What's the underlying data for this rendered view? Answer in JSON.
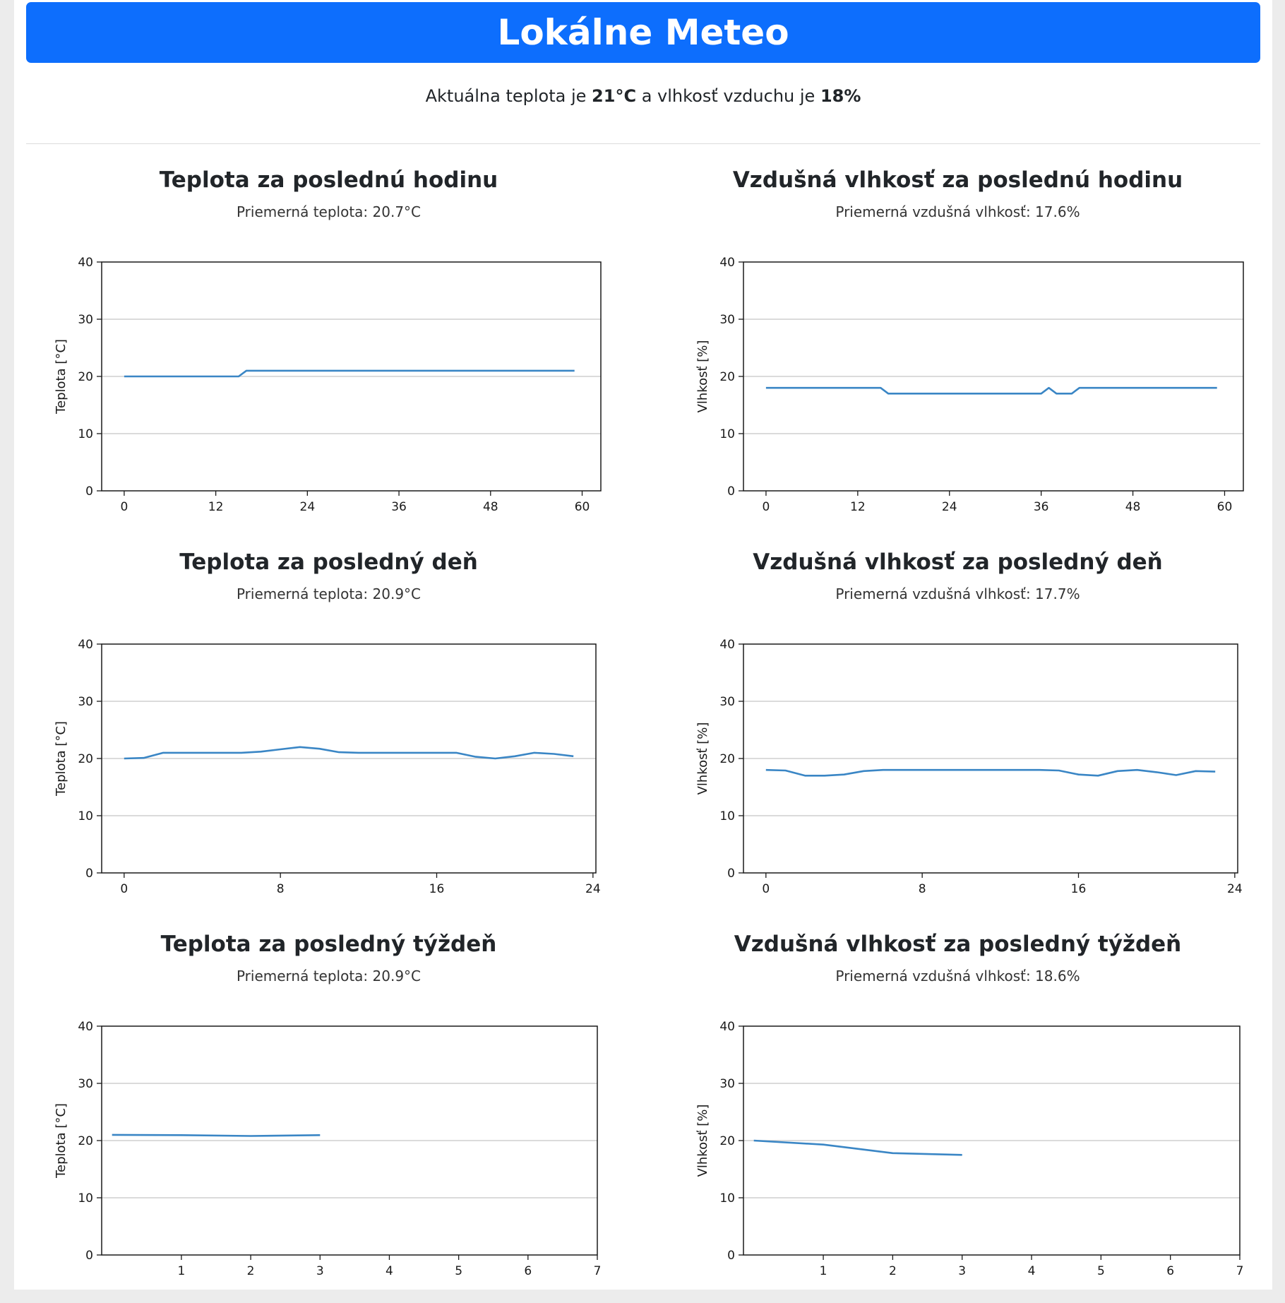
{
  "header": {
    "title": "Lokálne Meteo"
  },
  "current": {
    "prefix": "Aktuálna teplota je ",
    "temperature": "21°C",
    "middle": " a vlhkosť vzduchu je ",
    "humidity": "18%"
  },
  "panels": [
    {
      "title": "Teplota za poslednú hodinu",
      "average": "Priemerná teplota: 20.7°C",
      "chart_data": {
        "type": "line",
        "ylabel": "Teplota [°C]",
        "ylim": [
          0,
          40
        ],
        "yticks": [
          0,
          10,
          20,
          30,
          40
        ],
        "xlim": [
          -2.95,
          62.45
        ],
        "xticks": [
          0,
          12,
          24,
          36,
          48,
          60
        ],
        "grid": "y",
        "color": "#3a86c5",
        "x": [
          0,
          15,
          16,
          59
        ],
        "y": [
          20,
          20,
          21,
          21
        ]
      }
    },
    {
      "title": "Vzdušná vlhkosť za poslednú hodinu",
      "average": "Priemerná vzdušná vlhkosť: 17.6%",
      "chart_data": {
        "type": "line",
        "ylabel": "Vlhkosť [%]",
        "ylim": [
          0,
          40
        ],
        "yticks": [
          0,
          10,
          20,
          30,
          40
        ],
        "xlim": [
          -2.95,
          62.45
        ],
        "xticks": [
          0,
          12,
          24,
          36,
          48,
          60
        ],
        "grid": "y",
        "color": "#3a86c5",
        "x": [
          0,
          15,
          16,
          36,
          37,
          38,
          40,
          41,
          59
        ],
        "y": [
          18,
          18,
          17,
          17,
          18,
          17,
          17,
          18,
          18
        ]
      }
    },
    {
      "title": "Teplota za posledný deň",
      "average": "Priemerná teplota: 20.9°C",
      "chart_data": {
        "type": "line",
        "ylabel": "Teplota [°C]",
        "ylim": [
          0,
          40
        ],
        "yticks": [
          0,
          10,
          20,
          30,
          40
        ],
        "xlim": [
          -1.15,
          24.15
        ],
        "xticks": [
          0,
          8,
          16,
          24
        ],
        "grid": "y",
        "color": "#3a86c5",
        "x": [
          0,
          1,
          2,
          3,
          4,
          5,
          6,
          7,
          8,
          9,
          10,
          11,
          12,
          13,
          14,
          15,
          16,
          17,
          18,
          19,
          20,
          21,
          22,
          23
        ],
        "y": [
          20,
          20.1,
          21,
          21,
          21,
          21,
          21,
          21.2,
          21.6,
          22,
          21.7,
          21.1,
          21,
          21,
          21,
          21,
          21,
          21,
          20.3,
          20,
          20.4,
          21,
          20.8,
          20.4
        ]
      }
    },
    {
      "title": "Vzdušná vlhkosť za posledný deň",
      "average": "Priemerná vzdušná vlhkosť: 17.7%",
      "chart_data": {
        "type": "line",
        "ylabel": "Vlhkosť [%]",
        "ylim": [
          0,
          40
        ],
        "yticks": [
          0,
          10,
          20,
          30,
          40
        ],
        "xlim": [
          -1.15,
          24.15
        ],
        "xticks": [
          0,
          8,
          16,
          24
        ],
        "grid": "y",
        "color": "#3a86c5",
        "x": [
          0,
          1,
          2,
          3,
          4,
          5,
          6,
          7,
          8,
          9,
          10,
          11,
          12,
          13,
          14,
          15,
          16,
          17,
          18,
          19,
          20,
          21,
          22,
          23
        ],
        "y": [
          18,
          17.9,
          17,
          17,
          17.2,
          17.8,
          18,
          18,
          18,
          18,
          18,
          18,
          18,
          18,
          18,
          17.9,
          17.2,
          17,
          17.8,
          18,
          17.6,
          17.1,
          17.8,
          17.7
        ]
      }
    },
    {
      "title": "Teplota za posledný týždeň",
      "average": "Priemerná teplota: 20.9°C",
      "chart_data": {
        "type": "line",
        "ylabel": "Teplota [°C]",
        "ylim": [
          0,
          40
        ],
        "yticks": [
          0,
          10,
          20,
          30,
          40
        ],
        "xlim": [
          -0.15,
          7
        ],
        "xticks": [
          1,
          2,
          3,
          4,
          5,
          6,
          7
        ],
        "grid": "y",
        "color": "#3a86c5",
        "x": [
          0,
          1,
          2,
          3
        ],
        "y": [
          21,
          20.95,
          20.8,
          20.95
        ]
      }
    },
    {
      "title": "Vzdušná vlhkosť za posledný týždeň",
      "average": "Priemerná vzdušná vlhkosť: 18.6%",
      "chart_data": {
        "type": "line",
        "ylabel": "Vlhkosť [%]",
        "ylim": [
          0,
          40
        ],
        "yticks": [
          0,
          10,
          20,
          30,
          40
        ],
        "xlim": [
          -0.15,
          7
        ],
        "xticks": [
          1,
          2,
          3,
          4,
          5,
          6,
          7
        ],
        "grid": "y",
        "color": "#3a86c5",
        "x": [
          0,
          1,
          2,
          3
        ],
        "y": [
          20,
          19.3,
          17.8,
          17.5
        ]
      }
    }
  ]
}
